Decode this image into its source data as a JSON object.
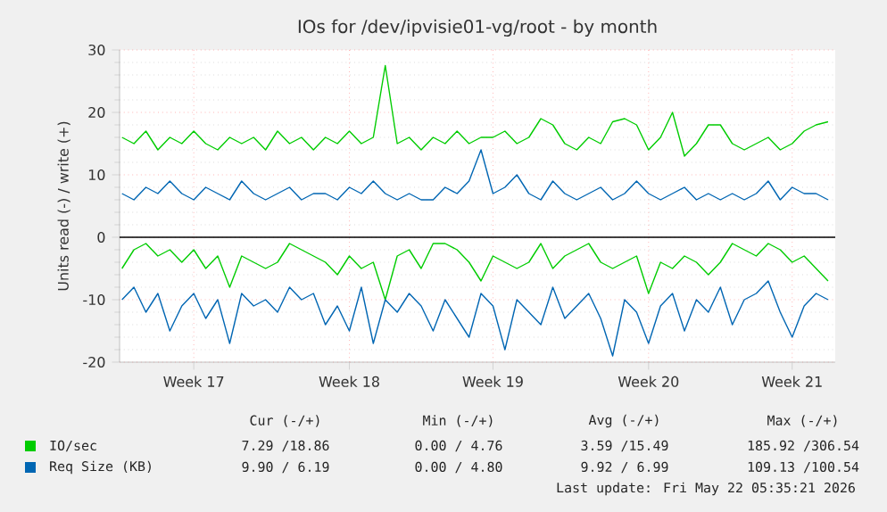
{
  "chart_data": {
    "type": "line",
    "title": "IOs for /dev/ipvisie01-vg/root - by month",
    "ylabel": "Units read (-) / write (+)",
    "ylim": [
      -20,
      30
    ],
    "yticks": [
      -20,
      -10,
      0,
      10,
      20,
      30
    ],
    "grid": true,
    "legend": "bottom",
    "ref_lines": [
      {
        "axis": "y",
        "value": 0,
        "color": "#000000"
      }
    ],
    "categories": [
      null,
      null,
      null,
      null,
      null,
      null,
      "Week 17",
      null,
      null,
      null,
      null,
      null,
      null,
      null,
      null,
      null,
      null,
      null,
      null,
      "Week 18",
      null,
      null,
      null,
      null,
      null,
      null,
      null,
      null,
      null,
      null,
      null,
      "Week 19",
      null,
      null,
      null,
      null,
      null,
      null,
      null,
      null,
      null,
      null,
      null,
      null,
      "Week 20",
      null,
      null,
      null,
      null,
      null,
      null,
      null,
      null,
      null,
      null,
      null,
      "Week 21",
      null,
      null,
      null
    ],
    "series": [
      {
        "color": "#00cc00",
        "values": [
          -5,
          -2,
          -1,
          -3,
          -2,
          -4,
          -2,
          -5,
          -3,
          -8,
          -3,
          -4,
          -5,
          -4,
          -1,
          -2,
          -3,
          -4,
          -6,
          -3,
          -5,
          -4,
          -10,
          -3,
          -2,
          -5,
          -1,
          -1,
          -2,
          -4,
          -7,
          -3,
          -4,
          -5,
          -4,
          -1,
          -5,
          -3,
          -2,
          -1,
          -4,
          -5,
          -4,
          -3,
          -9,
          -4,
          -5,
          -3,
          -4,
          -6,
          -4,
          -1,
          -2,
          -3,
          -1,
          -2,
          -4,
          -3,
          -5,
          -7
        ]
      },
      {
        "name": "IO/sec",
        "color": "#00cc00",
        "values": [
          16,
          15,
          17,
          14,
          16,
          15,
          17,
          15,
          14,
          16,
          15,
          16,
          14,
          17,
          15,
          16,
          14,
          16,
          15,
          17,
          15,
          16,
          27.5,
          15,
          16,
          14,
          16,
          15,
          17,
          15,
          16,
          16,
          17,
          15,
          16,
          19,
          18,
          15,
          14,
          16,
          15,
          18.5,
          19,
          18,
          14,
          16,
          20,
          13,
          15,
          18,
          18,
          15,
          14,
          15,
          16,
          14,
          15,
          17,
          18,
          18.5
        ]
      },
      {
        "color": "#0066b3",
        "values": [
          -10,
          -8,
          -12,
          -9,
          -15,
          -11,
          -9,
          -13,
          -10,
          -17,
          -9,
          -11,
          -10,
          -12,
          -8,
          -10,
          -9,
          -14,
          -11,
          -15,
          -8,
          -17,
          -10,
          -12,
          -9,
          -11,
          -15,
          -10,
          -13,
          -16,
          -9,
          -11,
          -18,
          -10,
          -12,
          -14,
          -8,
          -13,
          -11,
          -9,
          -13,
          -19,
          -10,
          -12,
          -17,
          -11,
          -9,
          -15,
          -10,
          -12,
          -8,
          -14,
          -10,
          -9,
          -7,
          -12,
          -16,
          -11,
          -9,
          -10
        ]
      },
      {
        "name": "Req Size (KB)",
        "color": "#0066b3",
        "values": [
          7,
          6,
          8,
          7,
          9,
          7,
          6,
          8,
          7,
          6,
          9,
          7,
          6,
          7,
          8,
          6,
          7,
          7,
          6,
          8,
          7,
          9,
          7,
          6,
          7,
          6,
          6,
          8,
          7,
          9,
          14,
          7,
          8,
          10,
          7,
          6,
          9,
          7,
          6,
          7,
          8,
          6,
          7,
          9,
          7,
          6,
          7,
          8,
          6,
          7,
          6,
          7,
          6,
          7,
          9,
          6,
          8,
          7,
          7,
          6
        ]
      }
    ],
    "annotations": [
      "Cur (-/+)",
      "Min (-/+)",
      "Avg (-/+)",
      "Max (-/+)",
      "7.29 /18.86",
      "0.00 / 4.76",
      "3.59 /15.49",
      "185.92 /306.54",
      "9.90 / 6.19",
      "0.00 / 4.80",
      "9.92 / 6.99",
      "109.13 /100.54",
      "Last update: Fri May 22 05:35:21 2026"
    ]
  }
}
